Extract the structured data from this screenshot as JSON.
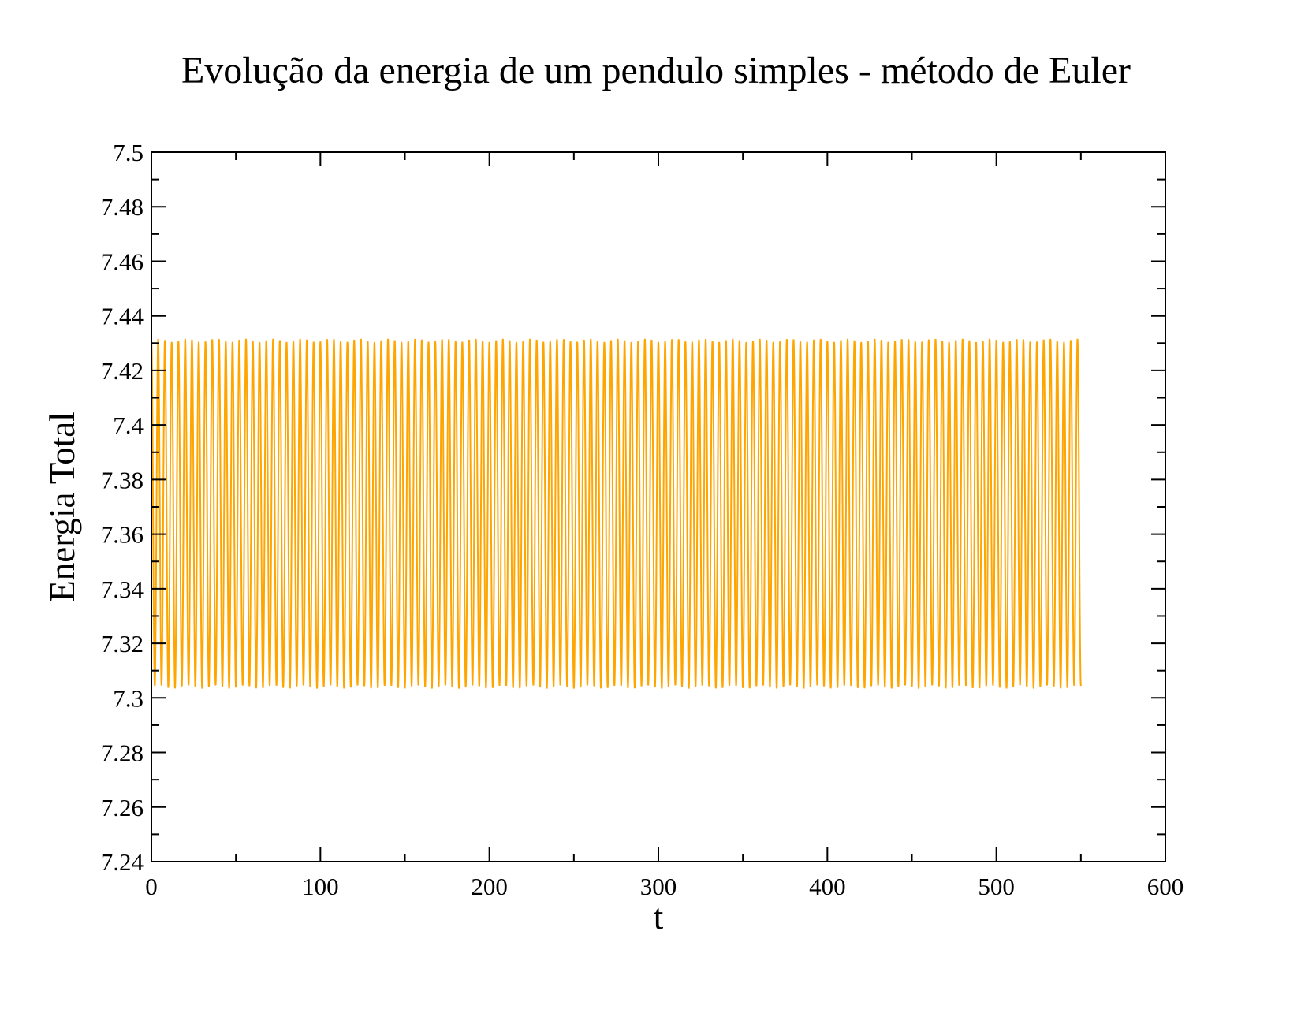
{
  "chart_data": {
    "type": "line",
    "title": "Evolução da energia de um pendulo simples - método de Euler",
    "xlabel": "t",
    "ylabel": "Energia Total",
    "xlim": [
      0,
      600
    ],
    "ylim": [
      7.24,
      7.5
    ],
    "x_ticks": [
      "0",
      "100",
      "200",
      "300",
      "400",
      "500",
      "600"
    ],
    "y_ticks": [
      "7.24",
      "7.26",
      "7.28",
      "7.3",
      "7.32",
      "7.34",
      "7.36",
      "7.38",
      "7.4",
      "7.42",
      "7.44",
      "7.46",
      "7.48",
      "7.5"
    ],
    "grid": false,
    "legend": "none",
    "series": [
      {
        "color": "#ffa500",
        "x_start": 0,
        "x_end": 550,
        "y_min": 7.304,
        "y_max": 7.431,
        "oscillation_period": 4
      }
    ]
  }
}
